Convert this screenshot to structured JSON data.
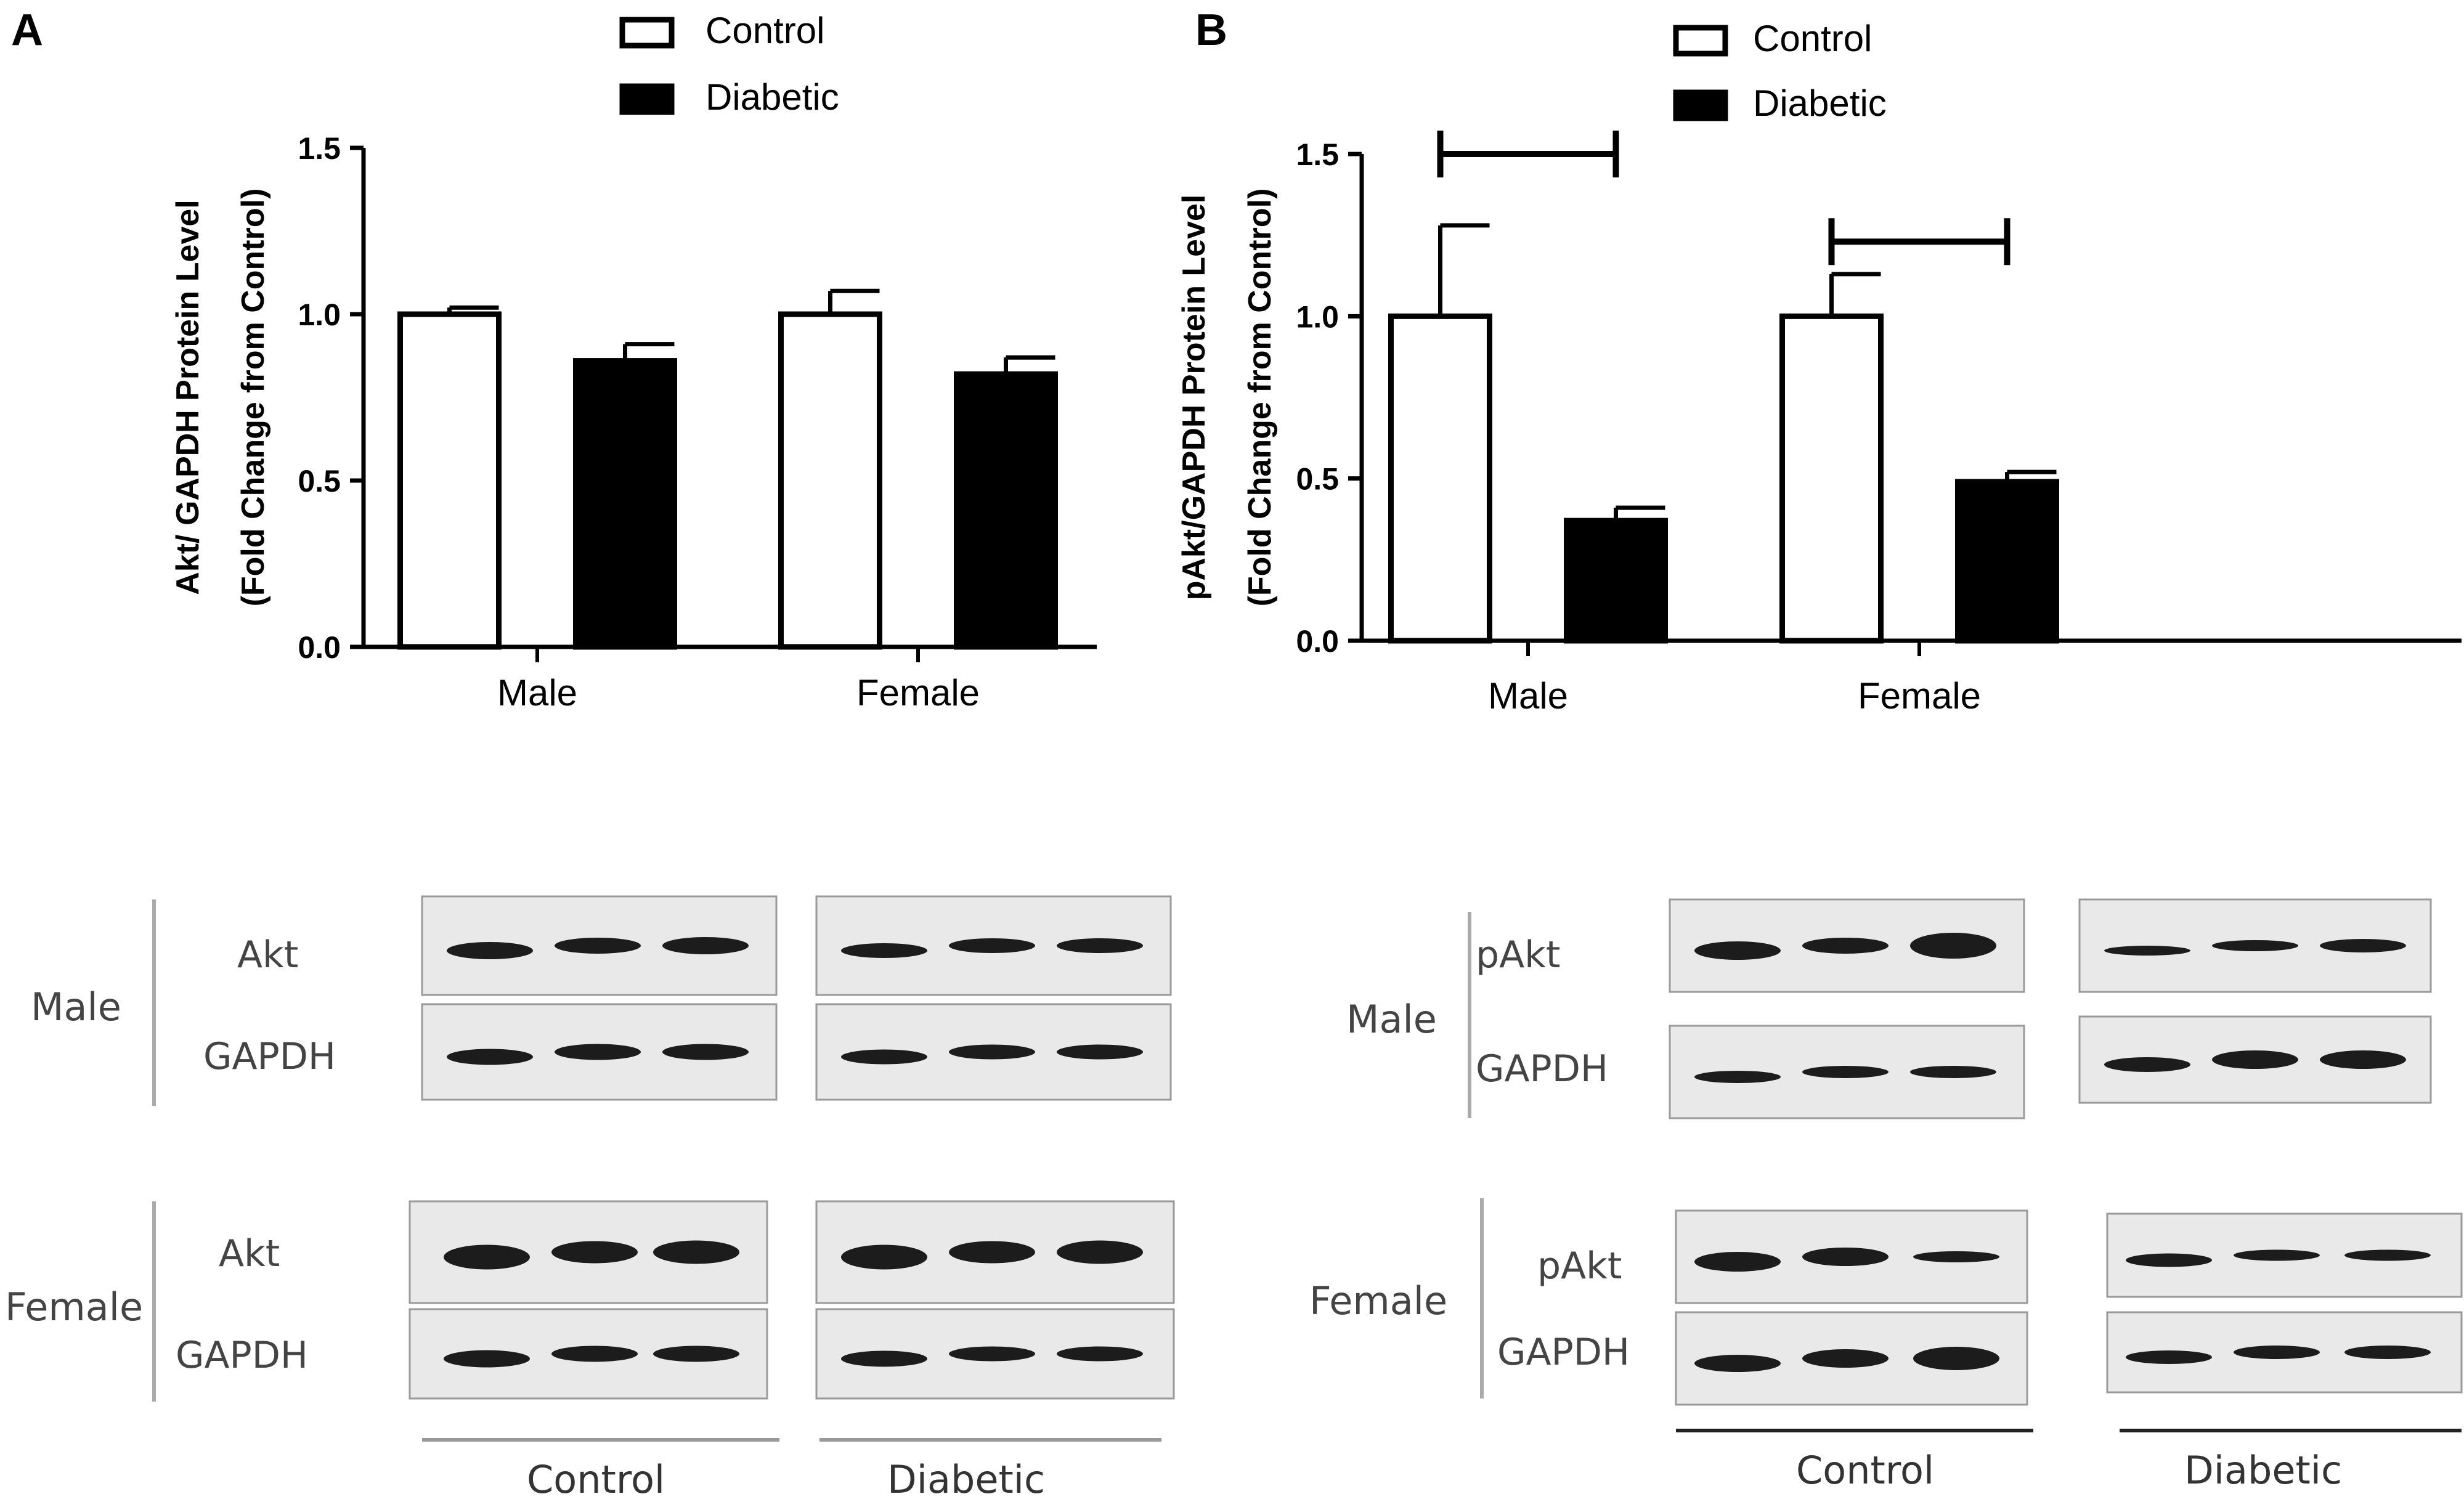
{
  "chart_data": [
    {
      "panel": "A",
      "type": "bar",
      "categories": [
        "Male",
        "Female"
      ],
      "series": [
        {
          "name": "Control",
          "values": [
            1.0,
            1.0
          ],
          "errors": [
            0.02,
            0.07
          ]
        },
        {
          "name": "Diabetic",
          "values": [
            0.86,
            0.82
          ],
          "errors": [
            0.05,
            0.05
          ]
        }
      ],
      "ylabel_line1": "Akt/ GAPDH Protein Level",
      "ylabel_line2": "(Fold Change from Control)",
      "ylim": [
        0,
        1.5
      ],
      "yticks": [
        "0.0",
        "0.5",
        "1.0",
        "1.5"
      ],
      "legend": "top",
      "significance_brackets": []
    },
    {
      "panel": "B",
      "type": "bar",
      "categories": [
        "Male",
        "Female"
      ],
      "series": [
        {
          "name": "Control",
          "values": [
            1.0,
            1.0
          ],
          "errors": [
            0.28,
            0.13
          ]
        },
        {
          "name": "Diabetic",
          "values": [
            0.37,
            0.49
          ],
          "errors": [
            0.04,
            0.03
          ]
        }
      ],
      "ylabel_line1": "pAkt/GAPDH Protein Level",
      "ylabel_line2": "(Fold Change from Control)",
      "ylim": [
        0,
        1.5
      ],
      "yticks": [
        "0.0",
        "0.5",
        "1.0",
        "1.5"
      ],
      "legend": "top",
      "significance_brackets": [
        {
          "category": "Male",
          "y": 1.5
        },
        {
          "category": "Female",
          "y": 1.23
        }
      ]
    }
  ],
  "colors": {
    "control_fill": "#ffffff",
    "diabetic_fill": "#000000",
    "axis": "#000000"
  },
  "blots": {
    "panel_a": {
      "male": {
        "group_label": "Male",
        "rows": [
          "Akt",
          "GAPDH"
        ]
      },
      "female": {
        "group_label": "Female",
        "rows": [
          "Akt",
          "GAPDH"
        ]
      },
      "lanes": [
        "Control",
        "Diabetic"
      ]
    },
    "panel_b": {
      "male": {
        "group_label": "Male",
        "rows": [
          "pAkt",
          "GAPDH"
        ]
      },
      "female": {
        "group_label": "Female",
        "rows": [
          "pAkt",
          "GAPDH"
        ]
      },
      "lanes": [
        "Control",
        "Diabetic"
      ]
    }
  }
}
